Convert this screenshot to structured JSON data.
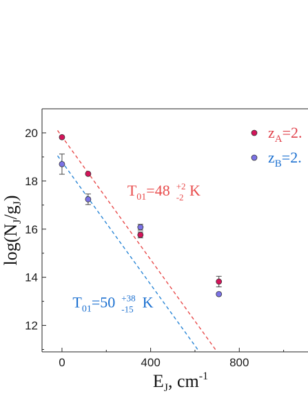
{
  "chart_data": {
    "type": "scatter",
    "title": "",
    "xlabel": {
      "main": "E",
      "sub": "J",
      "tail": ", cm",
      "sup": "-1"
    },
    "ylabel": {
      "pre": "log(N",
      "sub1": "J",
      "mid": "/g",
      "sub2": "J",
      "post": ")"
    },
    "xlim": [
      -90,
      1110
    ],
    "ylim": [
      10.9,
      21.0
    ],
    "xticks": [
      0,
      400,
      800
    ],
    "yticks": [
      12,
      14,
      16,
      18,
      20
    ],
    "xtick_labels": [
      "0",
      "400",
      "800"
    ],
    "ytick_labels": [
      "12",
      "14",
      "16",
      "18",
      "20"
    ],
    "grid": false,
    "legend_position": "top-right",
    "series": [
      {
        "legend_label": {
          "main": "z",
          "sub": "A",
          "tail": "=2."
        },
        "marker_color": "#d4145a",
        "text_color": "#e0404a",
        "points": [
          {
            "x": 0,
            "y": 19.82,
            "err": 0
          },
          {
            "x": 118,
            "y": 18.3,
            "err": 0
          },
          {
            "x": 354,
            "y": 15.76,
            "err": 0.12
          },
          {
            "x": 708,
            "y": 13.82,
            "err": 0.22
          }
        ]
      },
      {
        "legend_label": {
          "main": "z",
          "sub": "B",
          "tail": "=2."
        },
        "marker_color": "#7b72e6",
        "text_color": "#1a6fd0",
        "points": [
          {
            "x": 0,
            "y": 18.7,
            "err": 0.42
          },
          {
            "x": 118,
            "y": 17.24,
            "err": 0.22
          },
          {
            "x": 354,
            "y": 16.08,
            "err": 0.12
          },
          {
            "x": 708,
            "y": 13.3,
            "err": 0
          }
        ]
      }
    ],
    "fits": [
      {
        "color": "#e84a4a",
        "x": [
          -20,
          700
        ],
        "y": [
          20.1,
          10.9
        ]
      },
      {
        "color": "#2a86d6",
        "x": [
          -20,
          620
        ],
        "y": [
          19.05,
          10.9
        ]
      }
    ],
    "annotations": [
      {
        "color": "#e84a4a",
        "x": 295,
        "y": 17.4,
        "pre": "T",
        "sub": "01",
        "mid": "=48",
        "sup": "+2",
        "subscript2": "-2",
        "post": " K"
      },
      {
        "color": "#1a6fd0",
        "x": 48,
        "y": 12.75,
        "pre": "T",
        "sub": "01",
        "mid": "=50",
        "sup": "+38",
        "subscript2": "-15",
        "post": " K"
      }
    ]
  }
}
